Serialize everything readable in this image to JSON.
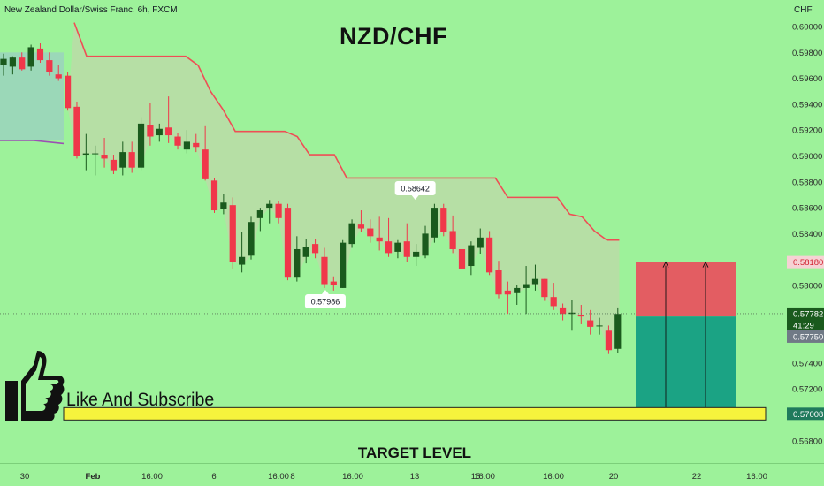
{
  "header": {
    "symbol_info": "New Zealand Dollar/Swiss Franc, 6h, FXCM",
    "currency": "CHF"
  },
  "title": "NZD/CHF",
  "like_text": "Like And Subscribe",
  "target_text": "TARGET LEVEL",
  "icons": {
    "thumb": "thumbs-up-icon"
  },
  "colors": {
    "bull": "#1a5a1d",
    "bear": "#f0374a",
    "band_line": "#ef4e55",
    "band_fill": "#b6dfa5",
    "left_band": "#9bd8b8",
    "left_line": "#9c50b4",
    "stop_zone": "#e35d62",
    "target_zone": "#1ba384",
    "target_level": "#f6f33d"
  },
  "chart_data": {
    "type": "candlestick",
    "ylim": [
      0.5672,
      0.6013
    ],
    "y_ticks": [
      "0.60000",
      "0.59800",
      "0.59600",
      "0.59400",
      "0.59200",
      "0.59000",
      "0.58800",
      "0.58600",
      "0.58400",
      "0.58200",
      "0.58000",
      "0.57800",
      "0.57600",
      "0.57400",
      "0.57200",
      "0.57000",
      "0.56800"
    ],
    "x_ticks": [
      "30",
      "Feb",
      "16:00",
      "6",
      "16:00",
      "8",
      "16:00",
      "13",
      "16:00",
      "15",
      "16:00",
      "20",
      "22",
      "16:00"
    ],
    "grid": false,
    "candles": [
      {
        "o": 0.597,
        "h": 0.5979,
        "l": 0.5962,
        "c": 0.5975
      },
      {
        "o": 0.5969,
        "h": 0.5977,
        "l": 0.5963,
        "c": 0.5976
      },
      {
        "o": 0.5976,
        "h": 0.598,
        "l": 0.5966,
        "c": 0.5967
      },
      {
        "o": 0.5969,
        "h": 0.5986,
        "l": 0.5966,
        "c": 0.5984
      },
      {
        "o": 0.5983,
        "h": 0.5987,
        "l": 0.5972,
        "c": 0.5974
      },
      {
        "o": 0.5974,
        "h": 0.598,
        "l": 0.5962,
        "c": 0.5965
      },
      {
        "o": 0.5963,
        "h": 0.597,
        "l": 0.5958,
        "c": 0.596
      },
      {
        "o": 0.5962,
        "h": 0.5965,
        "l": 0.5935,
        "c": 0.5937
      },
      {
        "o": 0.5938,
        "h": 0.5942,
        "l": 0.5898,
        "c": 0.59
      },
      {
        "o": 0.5901,
        "h": 0.5917,
        "l": 0.5889,
        "c": 0.5902
      },
      {
        "o": 0.5902,
        "h": 0.5908,
        "l": 0.5885,
        "c": 0.5902
      },
      {
        "o": 0.5901,
        "h": 0.5914,
        "l": 0.5891,
        "c": 0.5898
      },
      {
        "o": 0.5897,
        "h": 0.5901,
        "l": 0.5886,
        "c": 0.5889
      },
      {
        "o": 0.5891,
        "h": 0.5911,
        "l": 0.5885,
        "c": 0.5903
      },
      {
        "o": 0.5903,
        "h": 0.5911,
        "l": 0.5887,
        "c": 0.5891
      },
      {
        "o": 0.5891,
        "h": 0.593,
        "l": 0.5889,
        "c": 0.5925
      },
      {
        "o": 0.5924,
        "h": 0.5941,
        "l": 0.5908,
        "c": 0.5915
      },
      {
        "o": 0.5916,
        "h": 0.5925,
        "l": 0.5911,
        "c": 0.5921
      },
      {
        "o": 0.5922,
        "h": 0.5946,
        "l": 0.591,
        "c": 0.5916
      },
      {
        "o": 0.5915,
        "h": 0.5918,
        "l": 0.5905,
        "c": 0.5908
      },
      {
        "o": 0.5905,
        "h": 0.592,
        "l": 0.5902,
        "c": 0.5911
      },
      {
        "o": 0.591,
        "h": 0.5917,
        "l": 0.5903,
        "c": 0.5907
      },
      {
        "o": 0.5905,
        "h": 0.5923,
        "l": 0.5881,
        "c": 0.5882
      },
      {
        "o": 0.5881,
        "h": 0.5883,
        "l": 0.5856,
        "c": 0.5858
      },
      {
        "o": 0.5859,
        "h": 0.5871,
        "l": 0.5855,
        "c": 0.5864
      },
      {
        "o": 0.5862,
        "h": 0.5868,
        "l": 0.5813,
        "c": 0.5818
      },
      {
        "o": 0.5816,
        "h": 0.5841,
        "l": 0.581,
        "c": 0.5822
      },
      {
        "o": 0.5823,
        "h": 0.5853,
        "l": 0.582,
        "c": 0.5849
      },
      {
        "o": 0.5852,
        "h": 0.586,
        "l": 0.5842,
        "c": 0.5858
      },
      {
        "o": 0.586,
        "h": 0.5866,
        "l": 0.5848,
        "c": 0.5863
      },
      {
        "o": 0.5863,
        "h": 0.5865,
        "l": 0.5848,
        "c": 0.5852
      },
      {
        "o": 0.586,
        "h": 0.5863,
        "l": 0.5804,
        "c": 0.5806
      },
      {
        "o": 0.5806,
        "h": 0.5838,
        "l": 0.5803,
        "c": 0.5828
      },
      {
        "o": 0.5822,
        "h": 0.5836,
        "l": 0.5817,
        "c": 0.583
      },
      {
        "o": 0.5832,
        "h": 0.5836,
        "l": 0.5821,
        "c": 0.5825
      },
      {
        "o": 0.5822,
        "h": 0.5829,
        "l": 0.5798,
        "c": 0.5801
      },
      {
        "o": 0.5803,
        "h": 0.5807,
        "l": 0.5796,
        "c": 0.58
      },
      {
        "o": 0.5798,
        "h": 0.5835,
        "l": 0.5798,
        "c": 0.5833
      },
      {
        "o": 0.5832,
        "h": 0.5851,
        "l": 0.5829,
        "c": 0.5848
      },
      {
        "o": 0.5847,
        "h": 0.5858,
        "l": 0.5841,
        "c": 0.5844
      },
      {
        "o": 0.5844,
        "h": 0.5851,
        "l": 0.5833,
        "c": 0.5838
      },
      {
        "o": 0.5837,
        "h": 0.5853,
        "l": 0.5827,
        "c": 0.5834
      },
      {
        "o": 0.5834,
        "h": 0.5852,
        "l": 0.5822,
        "c": 0.5825
      },
      {
        "o": 0.5826,
        "h": 0.5835,
        "l": 0.5821,
        "c": 0.5833
      },
      {
        "o": 0.5834,
        "h": 0.5848,
        "l": 0.5818,
        "c": 0.5822
      },
      {
        "o": 0.5822,
        "h": 0.5832,
        "l": 0.5815,
        "c": 0.5826
      },
      {
        "o": 0.5823,
        "h": 0.5846,
        "l": 0.5821,
        "c": 0.584
      },
      {
        "o": 0.5837,
        "h": 0.5863,
        "l": 0.5833,
        "c": 0.586
      },
      {
        "o": 0.586,
        "h": 0.5863,
        "l": 0.5838,
        "c": 0.5841
      },
      {
        "o": 0.5842,
        "h": 0.5854,
        "l": 0.5825,
        "c": 0.5828
      },
      {
        "o": 0.5828,
        "h": 0.5839,
        "l": 0.5811,
        "c": 0.5813
      },
      {
        "o": 0.5815,
        "h": 0.5834,
        "l": 0.5808,
        "c": 0.5831
      },
      {
        "o": 0.5829,
        "h": 0.5844,
        "l": 0.5824,
        "c": 0.5837
      },
      {
        "o": 0.5837,
        "h": 0.5842,
        "l": 0.5808,
        "c": 0.581
      },
      {
        "o": 0.5812,
        "h": 0.5819,
        "l": 0.579,
        "c": 0.5793
      },
      {
        "o": 0.5796,
        "h": 0.5803,
        "l": 0.5778,
        "c": 0.5793
      },
      {
        "o": 0.5794,
        "h": 0.58,
        "l": 0.5785,
        "c": 0.5798
      },
      {
        "o": 0.5798,
        "h": 0.5815,
        "l": 0.5778,
        "c": 0.5801
      },
      {
        "o": 0.5801,
        "h": 0.5816,
        "l": 0.5796,
        "c": 0.5805
      },
      {
        "o": 0.5805,
        "h": 0.5805,
        "l": 0.5788,
        "c": 0.5791
      },
      {
        "o": 0.5791,
        "h": 0.5802,
        "l": 0.5781,
        "c": 0.5784
      },
      {
        "o": 0.5783,
        "h": 0.5786,
        "l": 0.5773,
        "c": 0.5778
      },
      {
        "o": 0.5778,
        "h": 0.5789,
        "l": 0.5765,
        "c": 0.5779
      },
      {
        "o": 0.5777,
        "h": 0.5785,
        "l": 0.577,
        "c": 0.5776
      },
      {
        "o": 0.5773,
        "h": 0.5781,
        "l": 0.5762,
        "c": 0.5768
      },
      {
        "o": 0.5769,
        "h": 0.5775,
        "l": 0.5762,
        "c": 0.5769
      },
      {
        "o": 0.5765,
        "h": 0.5769,
        "l": 0.5747,
        "c": 0.575
      },
      {
        "o": 0.5751,
        "h": 0.5783,
        "l": 0.5748,
        "c": 0.5778
      }
    ],
    "upper_band": [
      0.6003,
      0.5977,
      0.5977,
      0.5977,
      0.5977,
      0.5977,
      0.5977,
      0.5977,
      0.5977,
      0.5977,
      0.597,
      0.595,
      0.5936,
      0.5919,
      0.5919,
      0.5919,
      0.5919,
      0.5919,
      0.5915,
      0.5901,
      0.5901,
      0.5901,
      0.5883,
      0.5883,
      0.5883,
      0.5883,
      0.5883,
      0.5883,
      0.5883,
      0.5883,
      0.5883,
      0.5883,
      0.5883,
      0.5883,
      0.5883,
      0.5868,
      0.5868,
      0.5868,
      0.5868,
      0.5868,
      0.5855,
      0.5853,
      0.5842,
      0.5835,
      0.5835
    ],
    "annotations": [
      {
        "text": "0.58642",
        "price": 0.58642
      },
      {
        "text": "0.57986",
        "price": 0.57986
      }
    ],
    "price_labels": [
      {
        "text": "0.58180",
        "kind": "stop"
      },
      {
        "text": "0.57782",
        "kind": "last"
      },
      {
        "text": "41:29",
        "kind": "countdown"
      },
      {
        "text": "0.57750",
        "kind": "prev"
      },
      {
        "text": "0.57008",
        "kind": "target"
      }
    ],
    "position": {
      "entry": 0.5776,
      "stop": 0.5818,
      "target": 0.57008
    },
    "target_level": 0.57008
  }
}
